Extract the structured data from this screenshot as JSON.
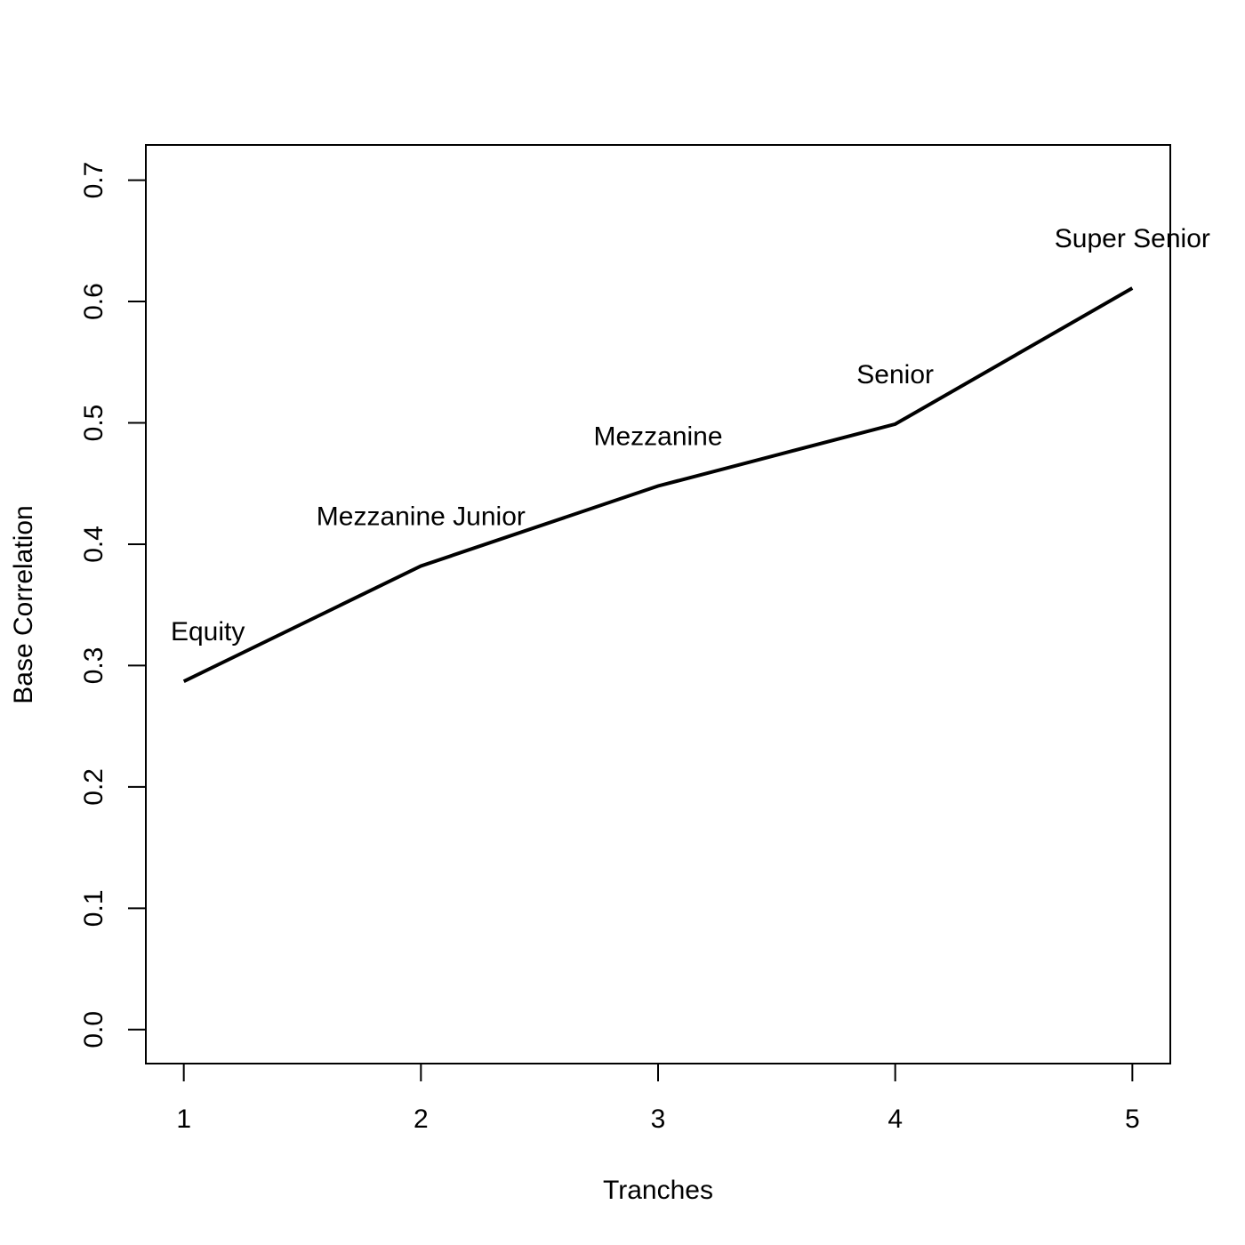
{
  "chart_data": {
    "type": "line",
    "title": "",
    "xlabel": "Tranches",
    "ylabel": "Base Correlation",
    "x": [
      1,
      2,
      3,
      4,
      5
    ],
    "y": [
      0.287,
      0.382,
      0.448,
      0.499,
      0.611
    ],
    "point_labels": [
      "Equity",
      "Mezzanine Junior",
      "Mezzanine",
      "Senior",
      "Super Senior"
    ],
    "x_ticks": [
      1,
      2,
      3,
      4,
      5
    ],
    "y_ticks": [
      0.0,
      0.1,
      0.2,
      0.3,
      0.4,
      0.5,
      0.6,
      0.7
    ],
    "x_tick_labels": [
      "1",
      "2",
      "3",
      "4",
      "5"
    ],
    "y_tick_labels": [
      "0.0",
      "0.1",
      "0.2",
      "0.3",
      "0.4",
      "0.5",
      "0.6",
      "0.7"
    ],
    "xlim": [
      0.84,
      5.16
    ],
    "ylim": [
      -0.028,
      0.729
    ],
    "grid": false,
    "legend": "none",
    "line_color": "#000000"
  }
}
